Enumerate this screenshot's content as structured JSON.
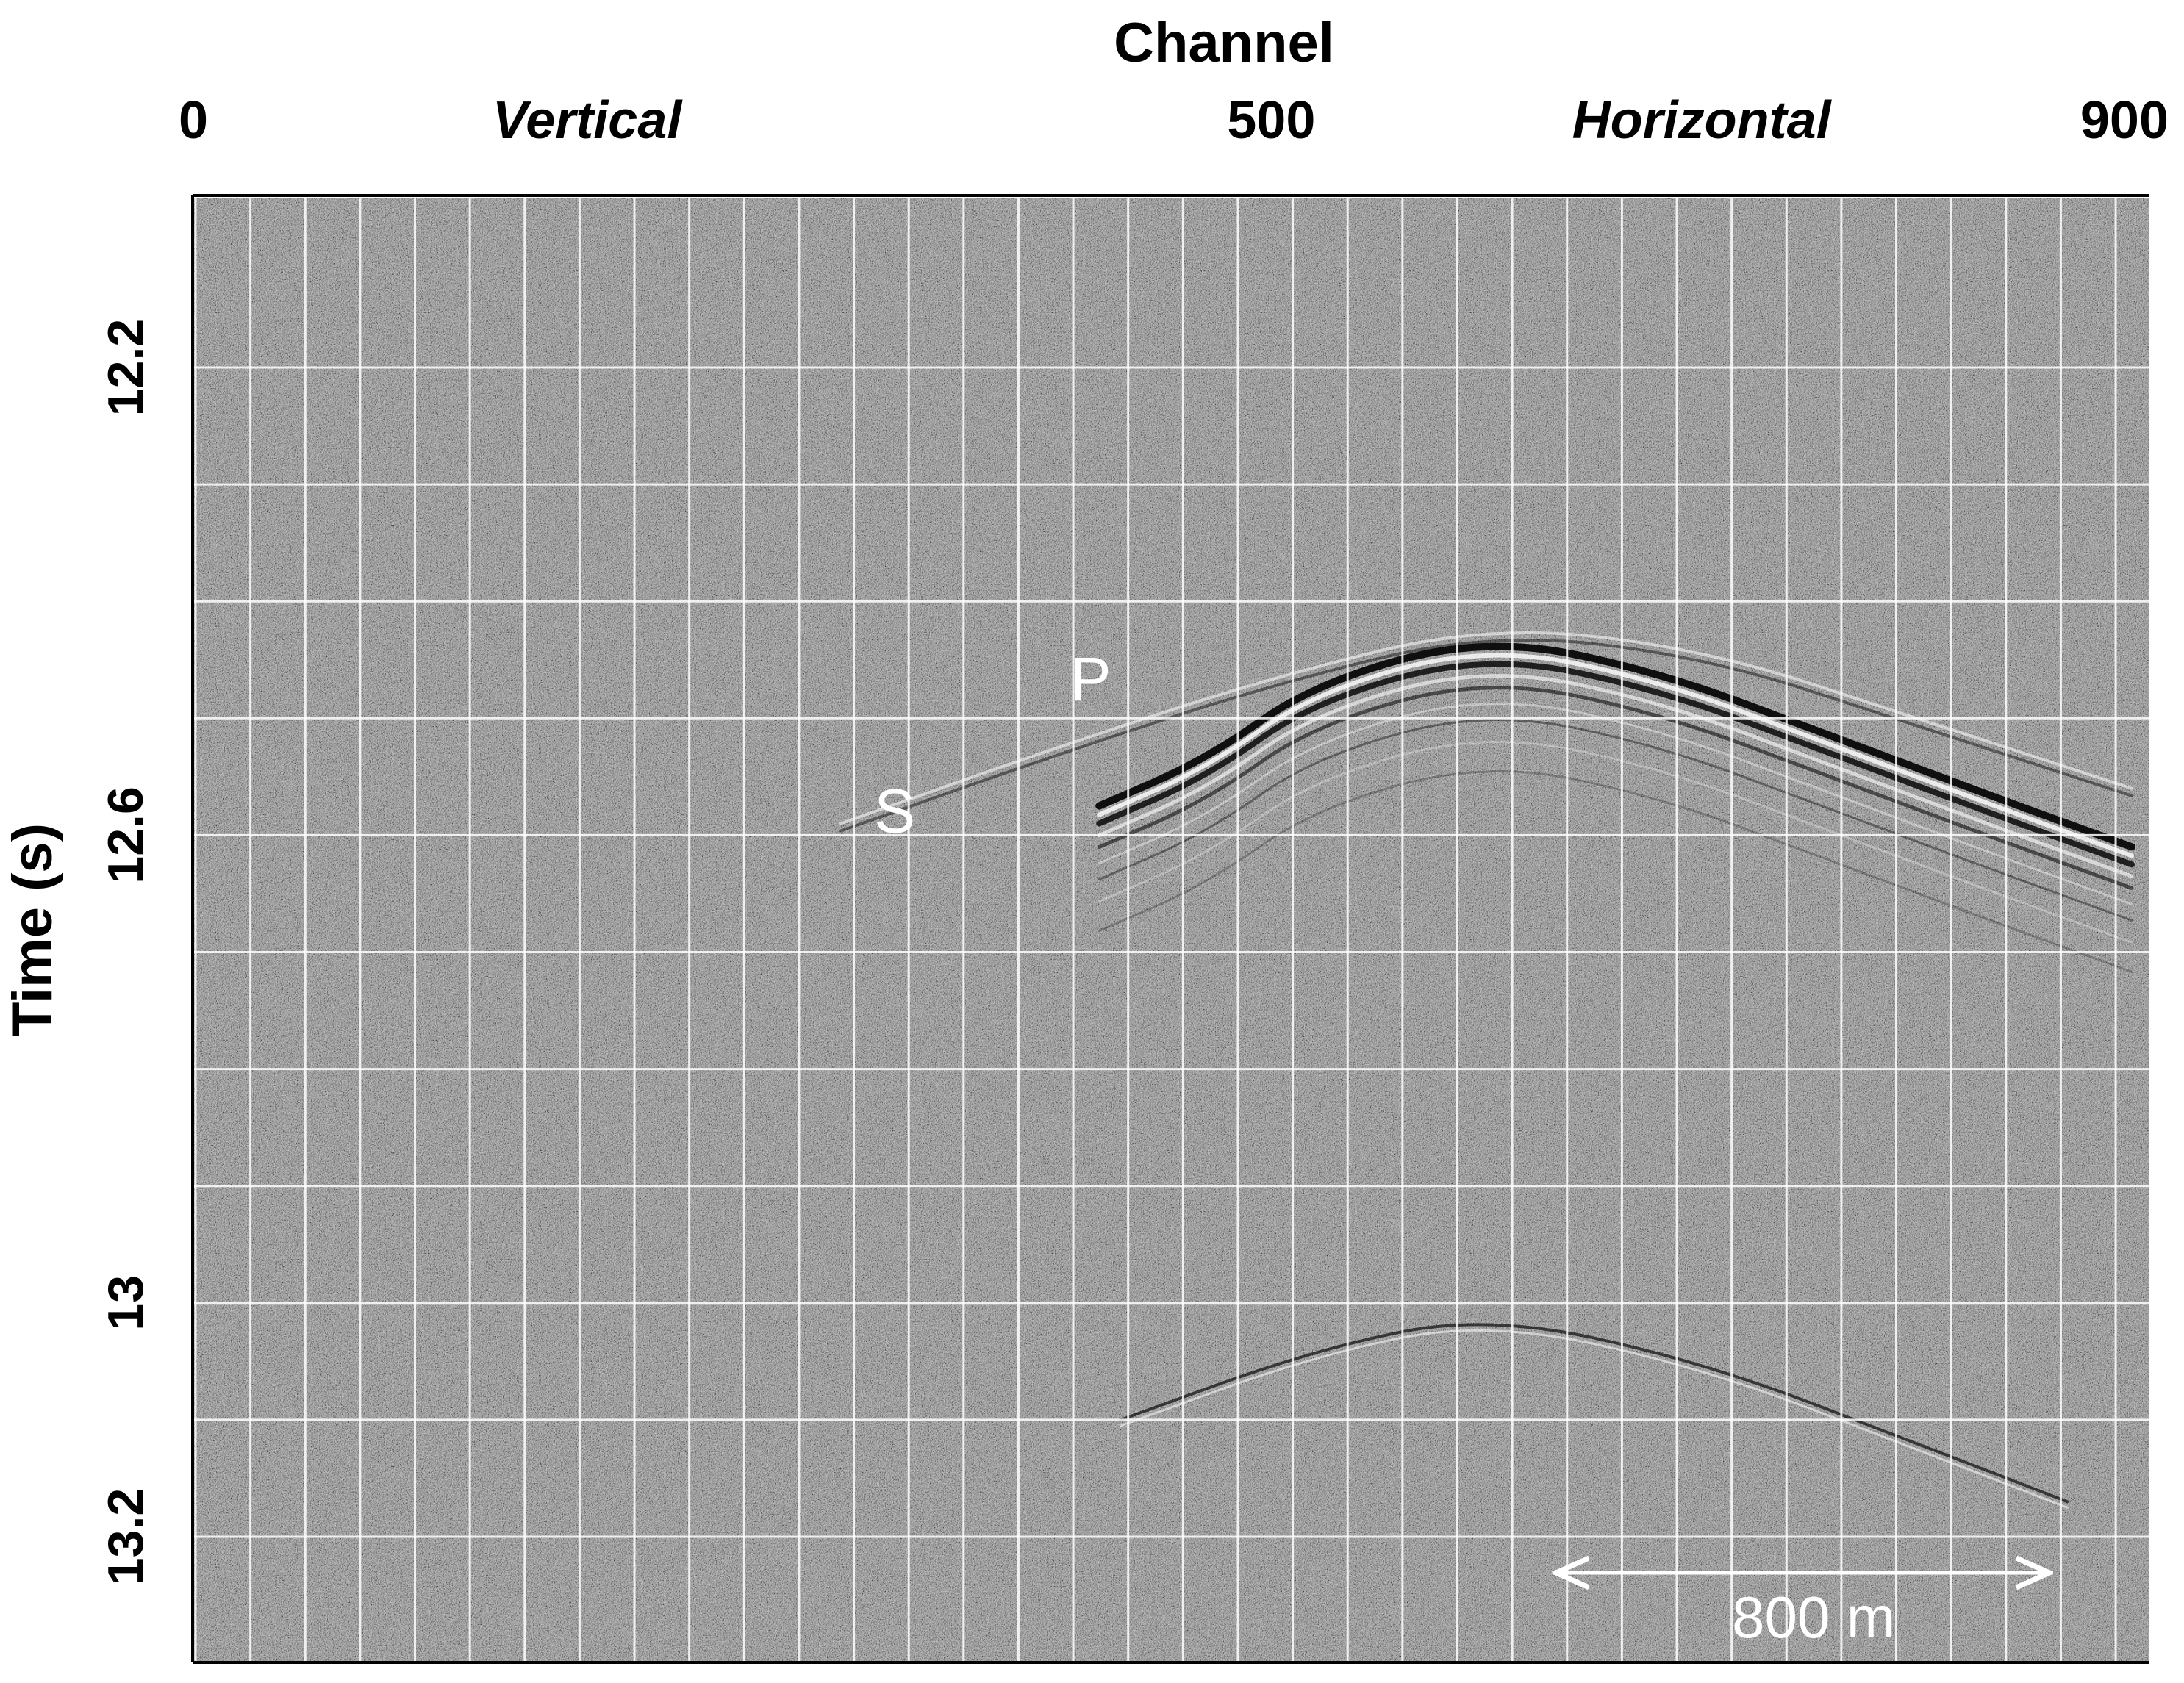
{
  "chart_data": {
    "type": "heatmap",
    "title": "",
    "xlabel": "Channel",
    "ylabel": "Time (s)",
    "x_ticks": [
      "0",
      "500",
      "900"
    ],
    "x_tick_values": [
      0,
      500,
      900
    ],
    "xlim": [
      0,
      900
    ],
    "y_ticks": [
      "12.2",
      "12.6",
      "13",
      "13.2"
    ],
    "y_tick_values": [
      12.2,
      12.6,
      13.0,
      13.2
    ],
    "ylim": [
      12.12,
      13.25
    ],
    "section_labels": [
      {
        "text": "Vertical",
        "x": 182
      },
      {
        "text": "Horizontal",
        "x": 700
      }
    ],
    "annotations": [
      {
        "text": "P",
        "x": 416,
        "y": 12.467
      },
      {
        "text": "S",
        "x": 325,
        "y": 12.58
      }
    ],
    "scale_bar": {
      "label": "800 m",
      "x_start": 634,
      "x_end": 860,
      "y": 13.23
    },
    "grid": true,
    "vertical_grid_spacing_channels": 25.5,
    "horizontal_grid_values": [
      12.2,
      12.3,
      12.4,
      12.5,
      12.6,
      12.7,
      12.8,
      12.9,
      13.0,
      13.1,
      13.2
    ],
    "colormap": "grayscale",
    "background_color": "#7f7f7f",
    "grid_color": "#ffffff",
    "events": [
      {
        "name": "main-arrival",
        "x": [
          420,
          470,
          520,
          600,
          680,
          760,
          840,
          900
        ],
        "y": [
          12.575,
          12.535,
          12.47,
          12.43,
          12.46,
          12.515,
          12.57,
          12.61
        ]
      },
      {
        "name": "precursor-arrival",
        "x": [
          300,
          400,
          500,
          600,
          700,
          800,
          900
        ],
        "y": [
          12.59,
          12.525,
          12.465,
          12.42,
          12.44,
          12.5,
          12.56
        ]
      },
      {
        "name": "late-arrival",
        "x": [
          430,
          520,
          600,
          700,
          800,
          870
        ],
        "y": [
          13.1,
          13.04,
          13.01,
          13.05,
          13.12,
          13.17
        ]
      }
    ]
  }
}
